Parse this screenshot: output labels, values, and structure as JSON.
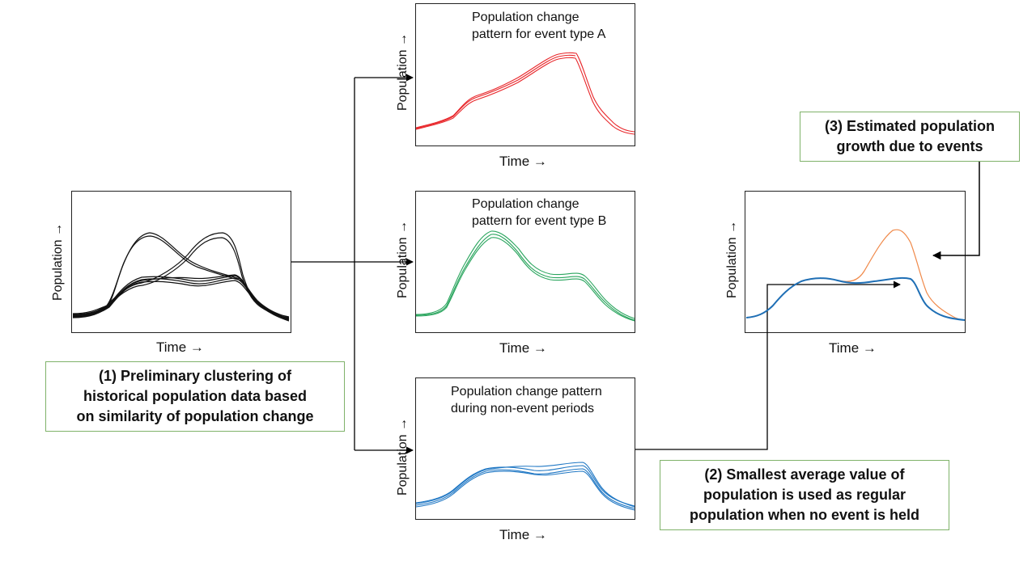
{
  "axis_labels": {
    "population": "Population →",
    "time": "Time →"
  },
  "panels": {
    "historical": {
      "title": ""
    },
    "event_a": {
      "title_line1": "Population change",
      "title_line2": "pattern for event type A",
      "color": "#e8262a"
    },
    "event_b": {
      "title_line1": "Population change",
      "title_line2": "pattern for event type B",
      "color": "#2aa55e"
    },
    "non_event": {
      "title_line1": "Population change pattern",
      "title_line2": "during non-event periods",
      "color": "#1f77c4"
    },
    "estimate": {
      "title": "",
      "event_color": "#f08a4b",
      "base_color": "#1f6fb5"
    }
  },
  "notes": {
    "step1_line1": "(1) Preliminary clustering of",
    "step1_line2": "historical population data based",
    "step1_line3": "on similarity  of population change",
    "step2_line1": "(2) Smallest average value of",
    "step2_line2": "population is used as regular",
    "step2_line3": "population when no event is held",
    "step3_line1": "(3) Estimated population",
    "step3_line2": "growth due to events"
  }
}
